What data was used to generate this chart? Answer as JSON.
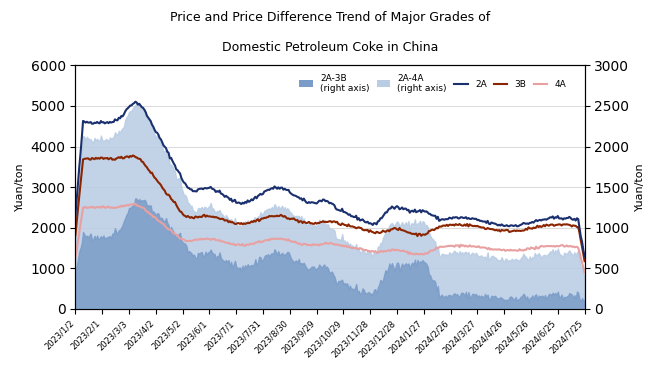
{
  "title_line1": "Price and Price Difference Trend of Major Grades of",
  "title_line2": "Domestic Petroleum Coke in China",
  "ylabel_left": "Yuan/ton",
  "ylabel_right": "Yuan/ton",
  "ylim_left": [
    0,
    6000
  ],
  "ylim_right": [
    0,
    3000
  ],
  "yticks_left": [
    0,
    1000,
    2000,
    3000,
    4000,
    5000,
    6000
  ],
  "yticks_right": [
    0,
    500,
    1000,
    1500,
    2000,
    2500,
    3000
  ],
  "x_labels": [
    "2023/1/2",
    "2023/2/1",
    "2023/3/3",
    "2023/4/2",
    "2023/5/2",
    "2023/6/1",
    "2023/7/1",
    "2023/7/31",
    "2023/8/30",
    "2023/9/29",
    "2023/10/29",
    "2023/11/28",
    "2023/12/28",
    "2024/1/27",
    "2024/2/26",
    "2024/3/27",
    "2024/4/26",
    "2024/5/26",
    "2024/6/25",
    "2024/7/25"
  ],
  "color_2A": "#1a2f6e",
  "color_3B": "#8b2500",
  "color_4A": "#e8a0a0",
  "color_area_2A3B": "#7a9cc8",
  "color_area_2A4A": "#b8cce4",
  "background": "#ffffff",
  "n_points": 400
}
